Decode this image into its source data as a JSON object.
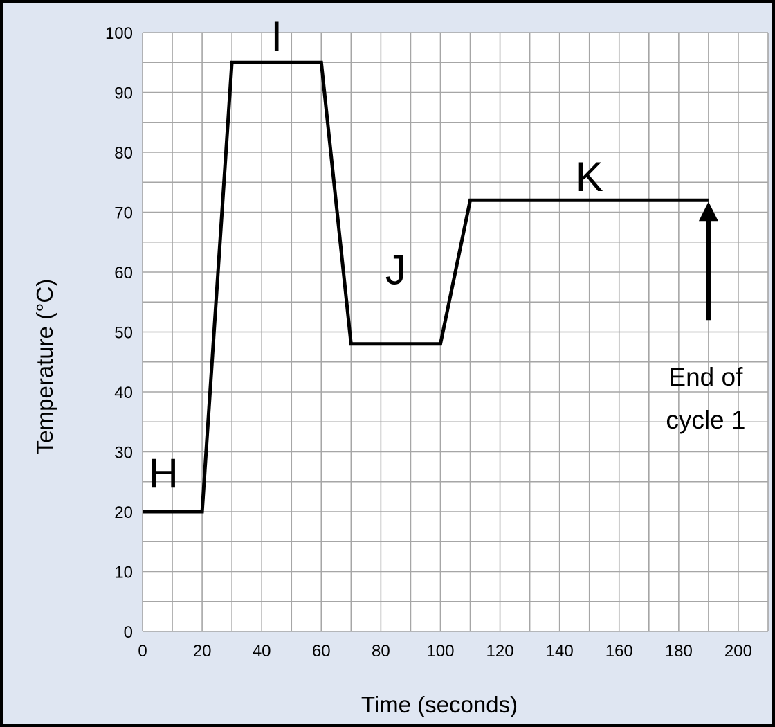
{
  "chart_data": {
    "type": "line",
    "xlabel": "Time (seconds)",
    "ylabel": "Temperature (°C)",
    "xlim": [
      0,
      210
    ],
    "ylim": [
      0,
      100
    ],
    "grid": true,
    "x_ticks": [
      0,
      20,
      40,
      60,
      80,
      100,
      120,
      140,
      160,
      180,
      200
    ],
    "y_ticks": [
      0,
      10,
      20,
      30,
      40,
      50,
      60,
      70,
      80,
      90,
      100
    ],
    "x_tick_labels": [
      "0",
      "20",
      "40",
      "60",
      "80",
      "100",
      "120",
      "140",
      "160",
      "180",
      "200"
    ],
    "y_tick_labels": [
      "0",
      "10",
      "20",
      "30",
      "40",
      "50",
      "60",
      "70",
      "80",
      "90",
      "100"
    ],
    "series": [
      {
        "x": [
          0,
          20,
          30,
          60,
          70,
          100,
          110,
          190
        ],
        "y": [
          20,
          20,
          95,
          95,
          48,
          48,
          72,
          72
        ]
      }
    ],
    "annotations": [
      {
        "text": "H",
        "x": 7,
        "y": 24
      },
      {
        "text": "I",
        "x": 45,
        "y": 97
      },
      {
        "text": "J",
        "x": 85,
        "y": 58
      },
      {
        "text": "K",
        "x": 150,
        "y": 73.5
      }
    ],
    "arrow": {
      "x": 190,
      "y_from": 52,
      "y_to": 72,
      "text_lines": [
        "End of",
        "cycle 1"
      ]
    },
    "colors": {
      "background": "#dfe6f2",
      "plot": "#ffffff",
      "grid": "#a6a6a6",
      "line": "#000000"
    }
  }
}
